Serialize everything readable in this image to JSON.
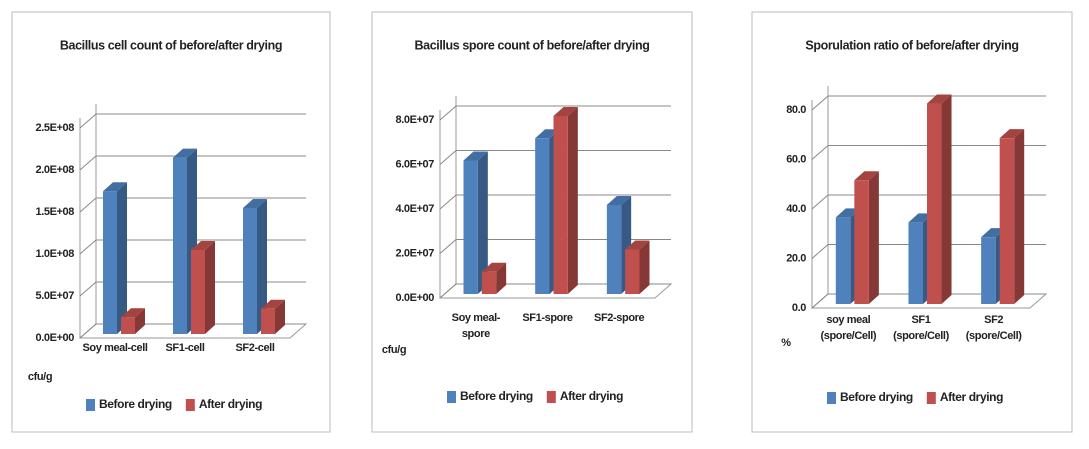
{
  "chart_data": [
    {
      "type": "bar3d",
      "title": "Bacillus  cell count of before/after drying",
      "ylabel": "cfu/g",
      "categories": [
        "Soy meal-cell",
        "SF1-cell",
        "SF2-cell"
      ],
      "series": [
        {
          "name": "Before drying",
          "color": "#4f81bd",
          "values": [
            170000000,
            210000000,
            150000000
          ]
        },
        {
          "name": "After drying",
          "color": "#c0504d",
          "values": [
            20000000,
            100000000,
            30000000
          ]
        }
      ],
      "ylim": [
        0,
        250000000
      ],
      "yticks": [
        {
          "value": 0,
          "label": "0.0E+00"
        },
        {
          "value": 50000000,
          "label": "5.0E+07"
        },
        {
          "value": 100000000,
          "label": "1.0E+08"
        },
        {
          "value": 150000000,
          "label": "1.5E+08"
        },
        {
          "value": 200000000,
          "label": "2.0E+08"
        },
        {
          "value": 250000000,
          "label": "2.5E+08"
        }
      ],
      "grid": true,
      "legend": "bottom"
    },
    {
      "type": "bar3d",
      "title": "Bacillus  spore count of before/after drying",
      "ylabel": "cfu/g",
      "categories": [
        "Soy meal-\nspore",
        "SF1-spore",
        "SF2-spore"
      ],
      "series": [
        {
          "name": "Before drying",
          "color": "#4f81bd",
          "values": [
            60000000,
            70000000,
            40000000
          ]
        },
        {
          "name": "After drying",
          "color": "#c0504d",
          "values": [
            10000000,
            80000000,
            20000000
          ]
        }
      ],
      "ylim": [
        0,
        80000000
      ],
      "yticks": [
        {
          "value": 0,
          "label": "0.0E+00"
        },
        {
          "value": 20000000,
          "label": "2.0E+07"
        },
        {
          "value": 40000000,
          "label": "4.0E+07"
        },
        {
          "value": 60000000,
          "label": "6.0E+07"
        },
        {
          "value": 80000000,
          "label": "8.0E+07"
        }
      ],
      "grid": true,
      "legend": "bottom"
    },
    {
      "type": "bar3d",
      "title": "Sporulation  ratio of before/after drying",
      "ylabel": "%",
      "categories": [
        "soy meal\n(spore/Cell)",
        "SF1\n(spore/Cell)",
        "SF2\n(spore/Cell)"
      ],
      "series": [
        {
          "name": "Before drying",
          "color": "#4f81bd",
          "values": [
            35,
            33,
            27
          ]
        },
        {
          "name": "After drying",
          "color": "#c0504d",
          "values": [
            50,
            81,
            67
          ]
        }
      ],
      "ylim": [
        0,
        80
      ],
      "yticks": [
        {
          "value": 0,
          "label": "0.0"
        },
        {
          "value": 20,
          "label": "20.0"
        },
        {
          "value": 40,
          "label": "40.0"
        },
        {
          "value": 60,
          "label": "60.0"
        },
        {
          "value": 80,
          "label": "80.0"
        }
      ],
      "grid": true,
      "legend": "bottom"
    }
  ]
}
